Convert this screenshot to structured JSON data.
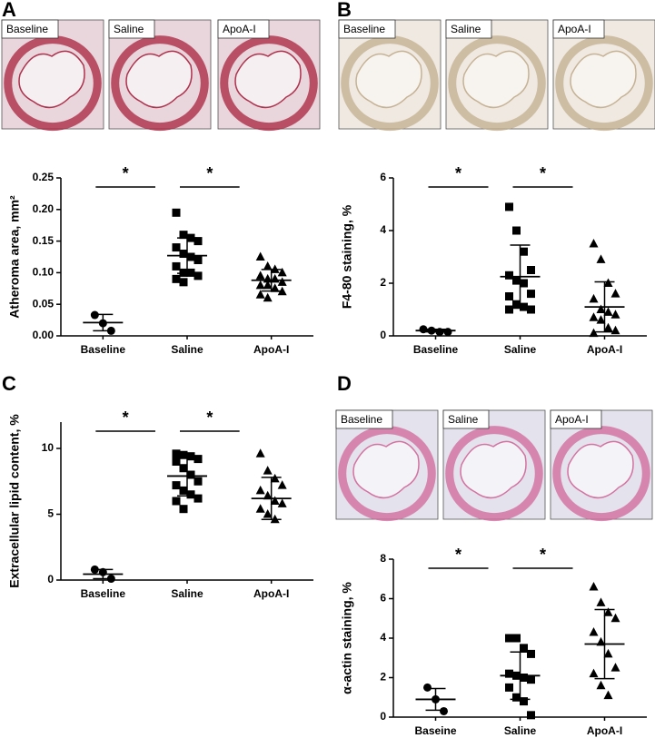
{
  "panels": [
    {
      "letter": "A",
      "images": [
        "Baseline",
        "Saline",
        "ApoA-I"
      ]
    },
    {
      "letter": "B",
      "images": [
        "Baseline",
        "Saline",
        "ApoA-I"
      ]
    },
    {
      "letter": "C"
    },
    {
      "letter": "D",
      "images": [
        "Baseline",
        "Saline",
        "ApoA-I"
      ]
    }
  ],
  "chart_data": [
    {
      "type": "scatter",
      "ylabel": "Atheroma area, mm²",
      "categories": [
        "Baseline",
        "Saline",
        "ApoA-I"
      ],
      "markers": [
        "circle",
        "square",
        "triangle"
      ],
      "values": [
        [
          0.033,
          0.02,
          0.008
        ],
        [
          0.195,
          0.16,
          0.155,
          0.15,
          0.14,
          0.13,
          0.125,
          0.12,
          0.11,
          0.1,
          0.1,
          0.095,
          0.09,
          0.085
        ],
        [
          0.125,
          0.11,
          0.105,
          0.1,
          0.095,
          0.09,
          0.09,
          0.085,
          0.08,
          0.08,
          0.075,
          0.07,
          0.065,
          0.06
        ]
      ],
      "means": [
        0.021,
        0.127,
        0.088
      ],
      "sds": [
        0.013,
        0.028,
        0.017
      ],
      "annotations": [
        "*",
        "*"
      ],
      "ylim": [
        0,
        0.25
      ],
      "yticks": [
        {
          "value": 0,
          "label": "0.00"
        },
        0.05,
        {
          "value": 0.1,
          "label": "0.10"
        },
        0.15,
        {
          "value": 0.2,
          "label": "0.20"
        },
        0.25
      ]
    },
    {
      "type": "scatter",
      "ylabel": "F4-80 staining, %",
      "categories": [
        "Baseline",
        "Saline",
        "ApoA-I"
      ],
      "markers": [
        "circle",
        "square",
        "triangle"
      ],
      "values": [
        [
          0.25,
          0.2,
          0.15,
          0.15
        ],
        [
          4.9,
          4.0,
          3.2,
          2.5,
          2.3,
          2.1,
          2.0,
          1.6,
          1.5,
          1.2,
          1.1,
          1.0,
          1.0
        ],
        [
          3.5,
          2.9,
          2.0,
          1.6,
          1.4,
          1.0,
          0.9,
          0.8,
          0.7,
          0.6,
          0.3,
          0.2,
          0.1
        ]
      ],
      "means": [
        0.2,
        2.25,
        1.1
      ],
      "sds": [
        0.05,
        1.2,
        0.95
      ],
      "annotations": [
        "*",
        "*"
      ],
      "ylim": [
        0,
        6
      ],
      "yticks": [
        0,
        2,
        4,
        6
      ]
    },
    {
      "type": "scatter",
      "ylabel": "Extracellular lipid content, %",
      "categories": [
        "Baseline",
        "Saline",
        "ApoA-I"
      ],
      "markers": [
        "circle",
        "square",
        "triangle"
      ],
      "values": [
        [
          0.8,
          0.6,
          0.1
        ],
        [
          9.6,
          9.5,
          9.4,
          9.2,
          9.0,
          8.5,
          8.0,
          7.5,
          7.2,
          6.8,
          6.5,
          6.2,
          6.0,
          5.4
        ],
        [
          9.6,
          8.3,
          7.7,
          7.2,
          6.8,
          6.4,
          6.0,
          5.8,
          5.4,
          5.0,
          4.6
        ]
      ],
      "means": [
        0.45,
        7.9,
        6.2
      ],
      "sds": [
        0.35,
        1.5,
        1.6
      ],
      "annotations": [
        "*",
        "*"
      ],
      "ylim": [
        0,
        12
      ],
      "yticks": [
        0,
        5,
        10
      ]
    },
    {
      "type": "scatter",
      "ylabel": "α-actin staining, %",
      "categories": [
        "Baseine",
        "Saline",
        "ApoA-I"
      ],
      "markers": [
        "circle",
        "square",
        "triangle"
      ],
      "values": [
        [
          1.5,
          0.9,
          0.3
        ],
        [
          4.0,
          4.0,
          3.5,
          3.2,
          2.2,
          2.1,
          2.0,
          1.9,
          1.5,
          1.0,
          0.8,
          0.1
        ],
        [
          6.6,
          5.8,
          5.3,
          5.0,
          4.3,
          3.8,
          3.2,
          2.5,
          2.2,
          1.6,
          1.1
        ]
      ],
      "means": [
        0.9,
        2.1,
        3.7
      ],
      "sds": [
        0.55,
        1.2,
        1.75
      ],
      "annotations": [
        "*",
        "*"
      ],
      "ylim": [
        0,
        8
      ],
      "yticks": [
        0,
        2,
        4,
        6,
        8
      ]
    }
  ]
}
